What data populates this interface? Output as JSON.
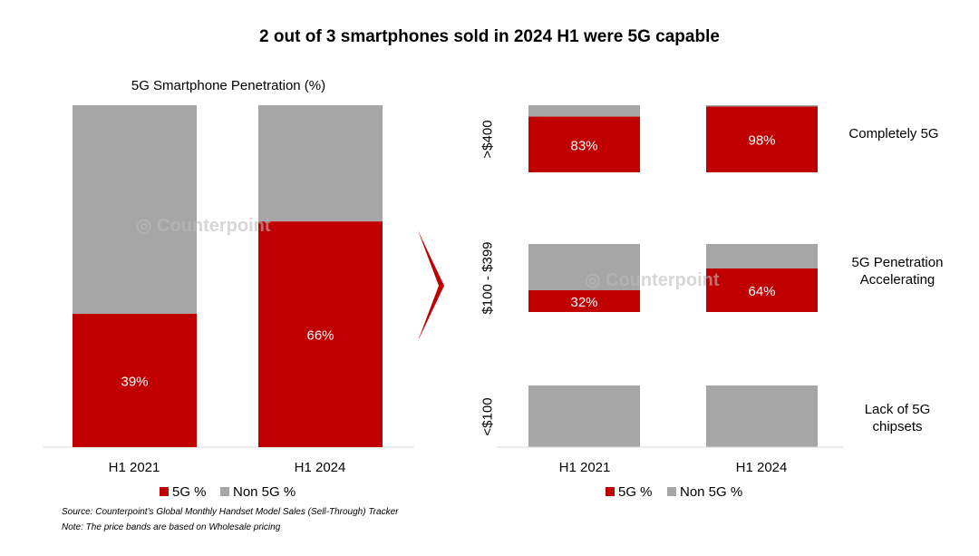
{
  "title": "2 out of 3 smartphones sold in 2024 H1 were 5G capable",
  "watermark": "Counterpoint",
  "colors": {
    "fiveg": "#c00000",
    "non5g": "#a6a6a6"
  },
  "chart_data": [
    {
      "type": "bar",
      "stacked": true,
      "title": "5G Smartphone Penetration (%)",
      "categories": [
        "H1 2021",
        "H1 2024"
      ],
      "series": [
        {
          "name": "5G %",
          "values": [
            39,
            66
          ]
        },
        {
          "name": "Non 5G %",
          "values": [
            61,
            34
          ]
        }
      ],
      "data_labels": [
        "39%",
        "66%"
      ],
      "ylim": [
        0,
        100
      ],
      "legend": "bottom"
    },
    {
      "type": "bar",
      "stacked": true,
      "categories": [
        "H1 2021",
        "H1 2024"
      ],
      "panels": [
        {
          "label": ">$400",
          "annotation": "Completely 5G",
          "values_5g": [
            83,
            98
          ],
          "data_labels": [
            "83%",
            "98%"
          ]
        },
        {
          "label": "$100 - $399",
          "annotation": "5G Penetration Accelerating",
          "values_5g": [
            32,
            64
          ],
          "data_labels": [
            "32%",
            "64%"
          ]
        },
        {
          "label": "<$100",
          "annotation": "Lack of 5G chipsets",
          "values_5g": [
            0,
            0
          ],
          "data_labels": [
            "",
            ""
          ]
        }
      ],
      "series_names": [
        "5G %",
        "Non 5G %"
      ],
      "ylim": [
        0,
        100
      ],
      "legend": "bottom"
    }
  ],
  "source": "Source: Counterpoint’s Global Monthly Handset Model Sales (Sell-Through) Tracker",
  "note": "Note: The price bands are based on Wholesale pricing"
}
